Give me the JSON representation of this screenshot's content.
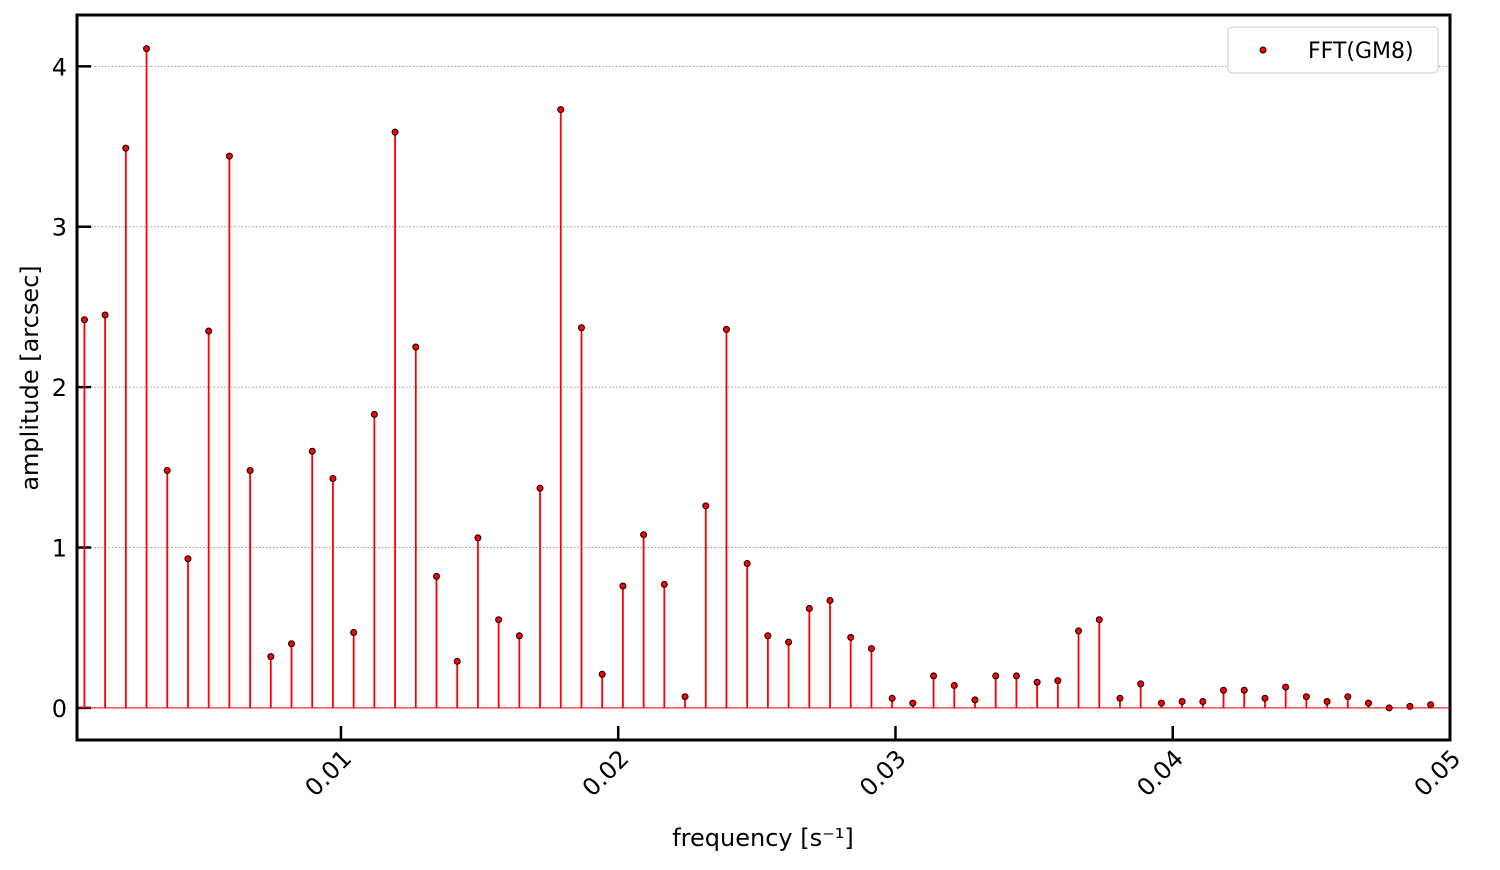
{
  "chart_data": {
    "type": "stem",
    "xlabel": "frequency [s⁻¹]",
    "ylabel": "amplitude [arcsec]",
    "series": [
      {
        "name": "FFT(GM8)",
        "color": "#ff0000",
        "x": [
          0.000747,
          0.001494,
          0.002241,
          0.002988,
          0.003735,
          0.004482,
          0.005229,
          0.005976,
          0.006723,
          0.00747,
          0.008217,
          0.008964,
          0.009711,
          0.010458,
          0.011205,
          0.011952,
          0.012699,
          0.013446,
          0.014193,
          0.01494,
          0.015687,
          0.016434,
          0.017181,
          0.017928,
          0.018675,
          0.019422,
          0.020169,
          0.020916,
          0.021663,
          0.02241,
          0.023157,
          0.023904,
          0.024651,
          0.025398,
          0.026145,
          0.026892,
          0.027639,
          0.028386,
          0.029133,
          0.02988,
          0.030627,
          0.031374,
          0.032121,
          0.032868,
          0.033615,
          0.034362,
          0.035109,
          0.035856,
          0.036603,
          0.03735,
          0.038097,
          0.038844,
          0.039591,
          0.040338,
          0.041085,
          0.041832,
          0.042579,
          0.043326,
          0.044073,
          0.04482,
          0.045567,
          0.046314,
          0.047061,
          0.047808,
          0.048555,
          0.049302
        ],
        "values": [
          2.42,
          2.45,
          3.49,
          4.11,
          1.48,
          0.93,
          2.35,
          3.44,
          1.48,
          0.32,
          0.4,
          1.6,
          1.43,
          0.47,
          1.83,
          3.59,
          2.25,
          0.82,
          0.29,
          1.06,
          0.55,
          0.45,
          1.37,
          3.73,
          2.37,
          0.21,
          0.76,
          1.08,
          0.77,
          0.07,
          1.26,
          2.36,
          0.9,
          0.45,
          0.41,
          0.62,
          0.67,
          0.44,
          0.37,
          0.06,
          0.03,
          0.2,
          0.14,
          0.05,
          0.2,
          0.2,
          0.16,
          0.17,
          0.48,
          0.55,
          0.06,
          0.15,
          0.03,
          0.04,
          0.04,
          0.11,
          0.11,
          0.06,
          0.13,
          0.07,
          0.04,
          0.07,
          0.03,
          0.0,
          0.01,
          0.02
        ]
      }
    ],
    "xlim": [
      0.00048,
      0.05
    ],
    "ylim": [
      -0.2,
      4.32
    ],
    "xticks": [
      0.01,
      0.02,
      0.03,
      0.04,
      0.05
    ],
    "yticks": [
      0,
      1,
      2,
      3,
      4
    ],
    "grid": true,
    "legend": "upper right"
  }
}
